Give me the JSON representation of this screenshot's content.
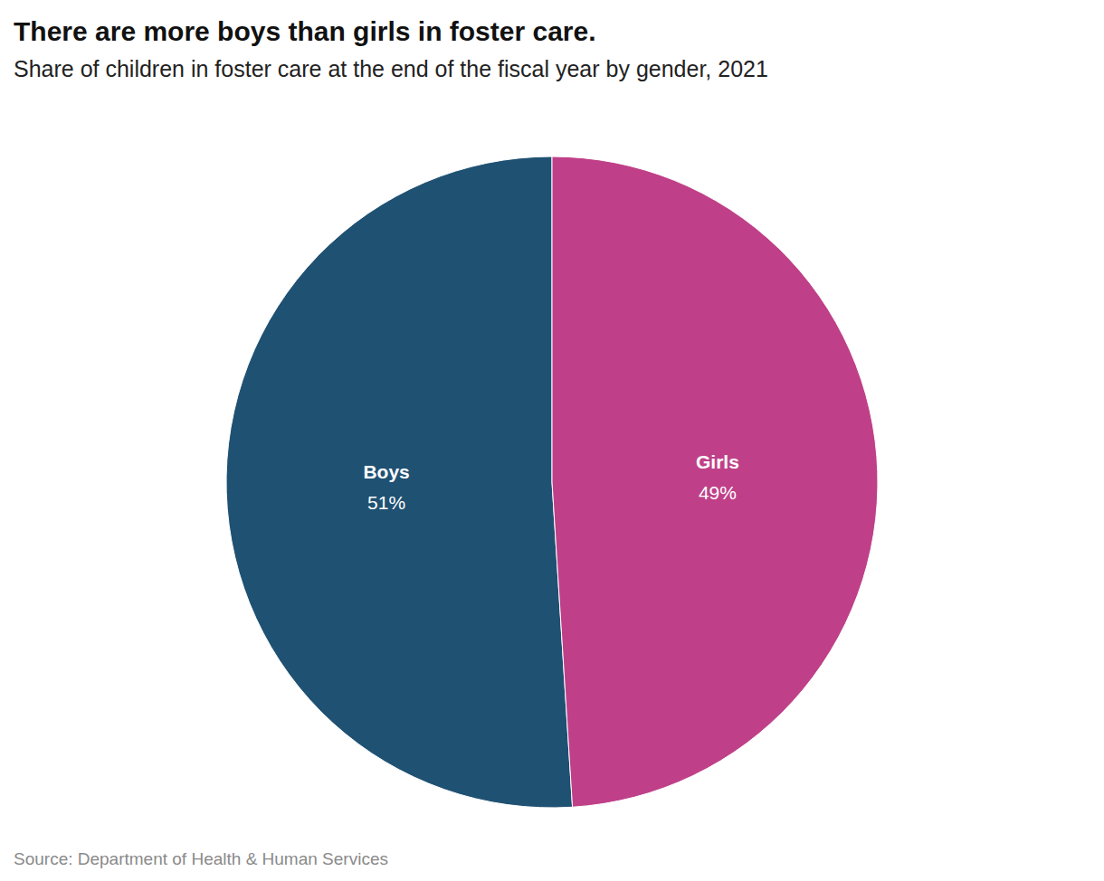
{
  "chart_data": {
    "type": "pie",
    "title": "There are more boys than girls in foster care.",
    "subtitle": "Share of children in foster care at the end of the fiscal year by gender, 2021",
    "source": "Source: Department of Health & Human Services",
    "categories": [
      "Boys",
      "Girls"
    ],
    "values": [
      51,
      49
    ],
    "value_labels": [
      "51%",
      "49%"
    ],
    "colors": [
      "#1f5173",
      "#bf4088"
    ],
    "data_labels": true
  }
}
